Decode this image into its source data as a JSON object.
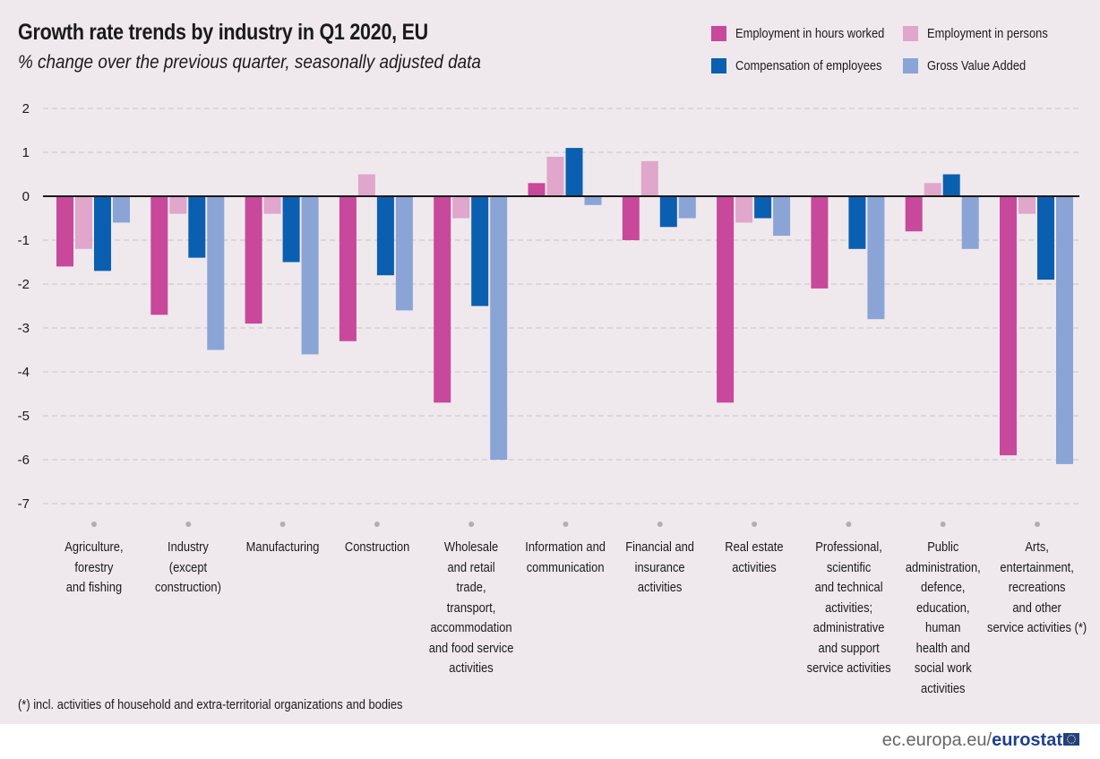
{
  "title": "Growth rate trends by industry in Q1 2020, EU",
  "subtitle": "% change over the previous quarter, seasonally adjusted data",
  "footnote": "(*) incl. activities of household and extra-territorial organizations and bodies",
  "source": {
    "domain": "ec.europa.eu/",
    "brand": "eurostat"
  },
  "colors": {
    "background": "#efe9ed",
    "gridline": "#c9c3c7"
  },
  "legend": [
    {
      "label": "Employment in hours worked",
      "color": "#c8489b"
    },
    {
      "label": "Employment in persons",
      "color": "#e0a6cb"
    },
    {
      "label": "Compensation of employees",
      "color": "#0b5fb0"
    },
    {
      "label": "Gross Value Added",
      "color": "#8aa4d6"
    }
  ],
  "chart_data": {
    "type": "bar",
    "title": "Growth rate trends by industry in Q1 2020, EU",
    "subtitle": "% change over the previous quarter, seasonally adjusted data",
    "ylim": [
      -7,
      2
    ],
    "yticks": [
      "2",
      "1",
      "0",
      "-1",
      "-2",
      "-3",
      "-4",
      "-5",
      "-6",
      "-7"
    ],
    "grid": true,
    "legend_position": "top-right",
    "categories": [
      "Agriculture,\nforestry\nand fishing",
      "Industry\n(except\nconstruction)",
      "Manufacturing",
      "Construction",
      "Wholesale\nand retail\ntrade,\ntransport,\naccommodation\nand food  service\nactivities",
      "Information and\ncommunication",
      "Financial  and\ninsurance\nactivities",
      "Real estate\nactivities",
      "Professional,\nscientific\nand technical\nactivities;\nadministrative\nand support\nservice activities",
      "Public\nadministration,\ndefence,\neducation,\nhuman\nhealth and\nsocial work\nactivities",
      "Arts,\nentertainment,\nrecreations\nand other\nservice activities (*)"
    ],
    "series": [
      {
        "name": "Employment in hours worked",
        "color": "#c8489b",
        "values": [
          -1.6,
          -2.7,
          -2.9,
          -3.3,
          -4.7,
          0.3,
          -1.0,
          -4.7,
          -2.1,
          -0.8,
          -5.9
        ]
      },
      {
        "name": "Employment in persons",
        "color": "#e0a6cb",
        "values": [
          -1.2,
          -0.4,
          -0.4,
          0.5,
          -0.5,
          0.9,
          0.8,
          -0.6,
          0.0,
          0.3,
          -0.4
        ]
      },
      {
        "name": "Compensation of employees",
        "color": "#0b5fb0",
        "values": [
          -1.7,
          -1.4,
          -1.5,
          -1.8,
          -2.5,
          1.1,
          -0.7,
          -0.5,
          -1.2,
          0.5,
          -1.9
        ]
      },
      {
        "name": "Gross Value Added",
        "color": "#8aa4d6",
        "values": [
          -0.6,
          -3.5,
          -3.6,
          -2.6,
          -6.0,
          -0.2,
          -0.5,
          -0.9,
          -2.8,
          -1.2,
          -6.1
        ]
      }
    ]
  }
}
